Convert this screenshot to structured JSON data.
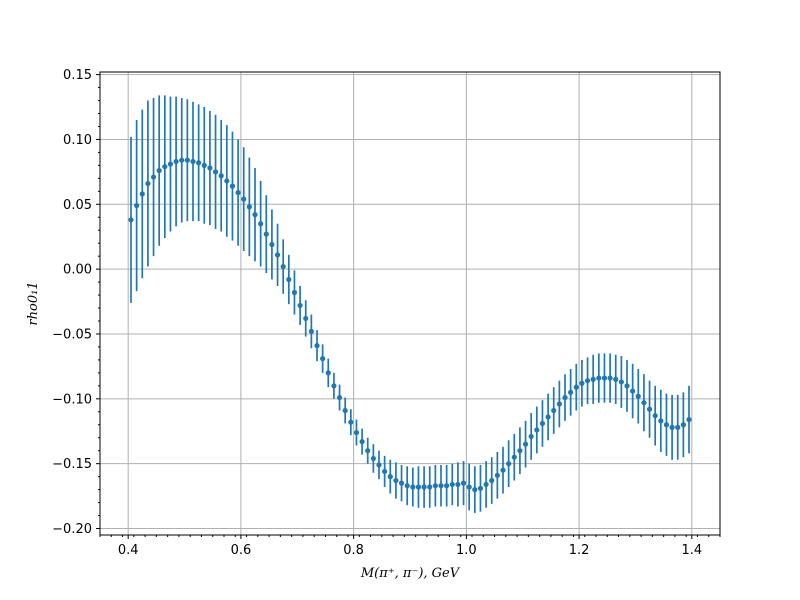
{
  "chart_data": {
    "type": "scatter",
    "title": "",
    "xlabel": "M(π⁺, π⁻), GeV",
    "ylabel": "rho0₁1",
    "xlim": [
      0.35,
      1.45
    ],
    "ylim": [
      -0.205,
      0.152
    ],
    "grid": true,
    "error_bars": true,
    "xticks": [
      0.4,
      0.6,
      0.8,
      1.0,
      1.2,
      1.4
    ],
    "xtick_labels": [
      "0.4",
      "0.6",
      "0.8",
      "1.0",
      "1.2",
      "1.4"
    ],
    "yticks": [
      0.15,
      0.1,
      0.05,
      0.0,
      -0.05,
      -0.1,
      -0.15,
      -0.2
    ],
    "ytick_labels": [
      "0.15",
      "0.10",
      "0.05",
      "0.00",
      "−0.05",
      "−0.10",
      "−0.15",
      "−0.20"
    ],
    "colors": {
      "series": "#1f77b4",
      "grid": "#b0b0b0",
      "axes": "#000000"
    },
    "series": [
      {
        "x": [
          0.405,
          0.415,
          0.425,
          0.435,
          0.445,
          0.455,
          0.465,
          0.475,
          0.485,
          0.495,
          0.505,
          0.515,
          0.525,
          0.535,
          0.545,
          0.555,
          0.565,
          0.575,
          0.585,
          0.595,
          0.605,
          0.615,
          0.625,
          0.635,
          0.645,
          0.655,
          0.665,
          0.675,
          0.685,
          0.695,
          0.705,
          0.715,
          0.725,
          0.735,
          0.745,
          0.755,
          0.765,
          0.775,
          0.785,
          0.795,
          0.805,
          0.815,
          0.825,
          0.835,
          0.845,
          0.855,
          0.865,
          0.875,
          0.885,
          0.895,
          0.905,
          0.915,
          0.925,
          0.935,
          0.945,
          0.955,
          0.965,
          0.975,
          0.985,
          0.995,
          1.005,
          1.015,
          1.025,
          1.035,
          1.045,
          1.055,
          1.065,
          1.075,
          1.085,
          1.095,
          1.105,
          1.115,
          1.125,
          1.135,
          1.145,
          1.155,
          1.165,
          1.175,
          1.185,
          1.195,
          1.205,
          1.215,
          1.225,
          1.235,
          1.245,
          1.255,
          1.265,
          1.275,
          1.285,
          1.295,
          1.305,
          1.315,
          1.325,
          1.335,
          1.345,
          1.355,
          1.365,
          1.375,
          1.385,
          1.395
        ],
        "y": [
          0.038,
          0.049,
          0.058,
          0.066,
          0.071,
          0.076,
          0.079,
          0.081,
          0.083,
          0.084,
          0.084,
          0.083,
          0.082,
          0.08,
          0.078,
          0.075,
          0.072,
          0.068,
          0.064,
          0.059,
          0.054,
          0.048,
          0.042,
          0.035,
          0.027,
          0.019,
          0.011,
          0.002,
          -0.008,
          -0.018,
          -0.028,
          -0.038,
          -0.048,
          -0.059,
          -0.069,
          -0.08,
          -0.09,
          -0.099,
          -0.109,
          -0.118,
          -0.126,
          -0.133,
          -0.14,
          -0.146,
          -0.151,
          -0.156,
          -0.16,
          -0.163,
          -0.165,
          -0.167,
          -0.168,
          -0.168,
          -0.168,
          -0.168,
          -0.167,
          -0.167,
          -0.167,
          -0.166,
          -0.166,
          -0.165,
          -0.168,
          -0.17,
          -0.169,
          -0.166,
          -0.163,
          -0.159,
          -0.155,
          -0.15,
          -0.145,
          -0.14,
          -0.135,
          -0.129,
          -0.124,
          -0.119,
          -0.114,
          -0.109,
          -0.104,
          -0.099,
          -0.095,
          -0.091,
          -0.088,
          -0.086,
          -0.085,
          -0.084,
          -0.084,
          -0.084,
          -0.085,
          -0.087,
          -0.09,
          -0.094,
          -0.098,
          -0.103,
          -0.108,
          -0.113,
          -0.117,
          -0.12,
          -0.122,
          -0.122,
          -0.12,
          -0.116
        ],
        "err": [
          0.064,
          0.066,
          0.065,
          0.064,
          0.061,
          0.058,
          0.055,
          0.052,
          0.05,
          0.048,
          0.047,
          0.046,
          0.045,
          0.045,
          0.044,
          0.044,
          0.043,
          0.043,
          0.042,
          0.041,
          0.04,
          0.038,
          0.036,
          0.033,
          0.03,
          0.027,
          0.024,
          0.021,
          0.019,
          0.017,
          0.015,
          0.014,
          0.013,
          0.012,
          0.011,
          0.011,
          0.01,
          0.01,
          0.01,
          0.01,
          0.01,
          0.01,
          0.01,
          0.011,
          0.011,
          0.012,
          0.013,
          0.014,
          0.014,
          0.015,
          0.015,
          0.016,
          0.016,
          0.016,
          0.016,
          0.016,
          0.016,
          0.016,
          0.017,
          0.017,
          0.018,
          0.018,
          0.018,
          0.018,
          0.018,
          0.018,
          0.018,
          0.018,
          0.018,
          0.018,
          0.018,
          0.018,
          0.018,
          0.018,
          0.018,
          0.018,
          0.018,
          0.018,
          0.018,
          0.018,
          0.018,
          0.018,
          0.019,
          0.019,
          0.019,
          0.019,
          0.019,
          0.02,
          0.02,
          0.021,
          0.021,
          0.022,
          0.022,
          0.023,
          0.024,
          0.024,
          0.025,
          0.025,
          0.025,
          0.026
        ]
      }
    ]
  }
}
